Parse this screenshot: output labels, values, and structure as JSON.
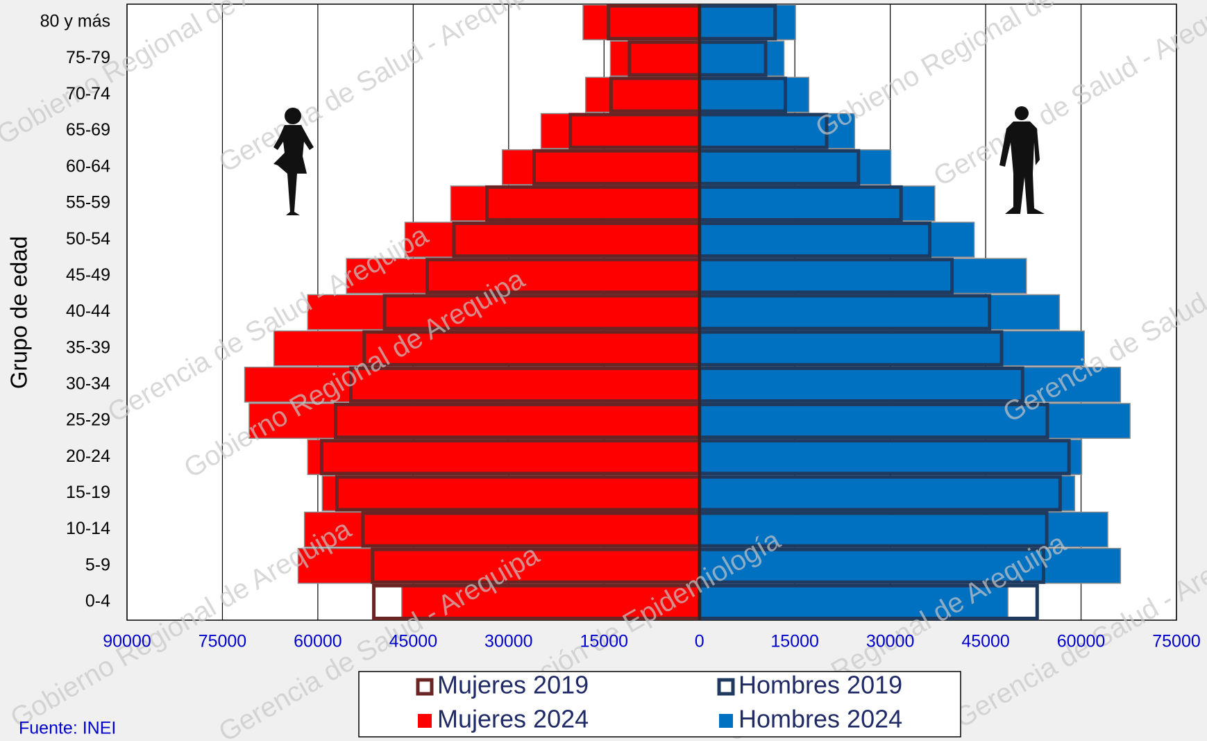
{
  "chart_data": {
    "type": "pyramid",
    "ylabel": "Grupo de edad",
    "source": "Fuente: INEI",
    "watermarks": [
      "Gobierno Regional de Arequipa",
      "Gerencia de Salud - Arequipa",
      "Dirección de Epidemiología"
    ],
    "categories": [
      "80 y más",
      "75-79",
      "70-74",
      "65-69",
      "60-64",
      "55-59",
      "50-54",
      "45-49",
      "40-44",
      "35-39",
      "30-34",
      "25-29",
      "20-24",
      "15-19",
      "10-14",
      "5-9",
      "0-4"
    ],
    "series": [
      {
        "name": "Mujeres 2024",
        "color": "#ff0000",
        "style": "filled",
        "values": [
          -18300,
          -14000,
          -17900,
          -24900,
          -31000,
          -39100,
          -46300,
          -55500,
          -61600,
          -66900,
          -71500,
          -70800,
          -61600,
          -59300,
          -62100,
          -63100,
          -46800
        ]
      },
      {
        "name": "Hombres 2024",
        "color": "#0070c0",
        "style": "filled",
        "values": [
          15100,
          13300,
          17200,
          24400,
          30100,
          37000,
          43200,
          51400,
          56600,
          60500,
          66200,
          67700,
          60100,
          59000,
          64200,
          66200,
          48500
        ]
      },
      {
        "name": "Mujeres 2019",
        "color": "#6b2424",
        "style": "outline",
        "values": [
          -14300,
          -11000,
          -13900,
          -20300,
          -26000,
          -33400,
          -38600,
          -42800,
          -49500,
          -52700,
          -54800,
          -57200,
          -59400,
          -57000,
          -52900,
          -51400,
          -51200
        ]
      },
      {
        "name": "Hombres 2019",
        "color": "#1f3a5f",
        "style": "outline",
        "values": [
          11900,
          10400,
          13500,
          20000,
          25000,
          31700,
          36200,
          39700,
          45600,
          47500,
          50800,
          54700,
          58100,
          56700,
          54600,
          54100,
          53100
        ]
      }
    ],
    "xlim": [
      -90000,
      75000
    ],
    "xticks": [
      {
        "value": -90000,
        "label": "90000"
      },
      {
        "value": -75000,
        "label": "75000"
      },
      {
        "value": -60000,
        "label": "60000"
      },
      {
        "value": -45000,
        "label": "45000"
      },
      {
        "value": -30000,
        "label": "30000"
      },
      {
        "value": -15000,
        "label": "15000"
      },
      0,
      15000,
      30000,
      45000,
      60000,
      75000
    ],
    "grid": true
  }
}
